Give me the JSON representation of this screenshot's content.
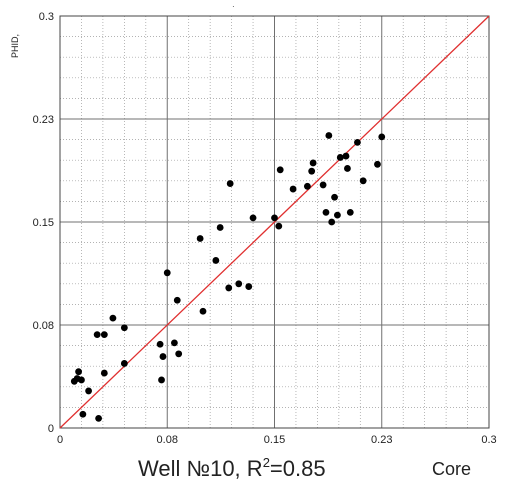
{
  "chart_data": {
    "type": "scatter",
    "title": "Well №10, R²=0.85",
    "caption": {
      "prefix": "Well №10, R",
      "sup": "2",
      "suffix": "=0.85"
    },
    "xlabel": "Core",
    "ylabel": "PHID,",
    "xlim": [
      0,
      0.3
    ],
    "ylim": [
      0,
      0.3
    ],
    "x_ticks": [
      0,
      0.075,
      0.15,
      0.225,
      0.3
    ],
    "x_tick_labels": [
      "0",
      "0.08",
      "0.15",
      "0.23",
      "0.3"
    ],
    "y_ticks": [
      0,
      0.075,
      0.15,
      0.225,
      0.3
    ],
    "y_tick_labels": [
      "0",
      "0.08",
      "0.15",
      "0.23",
      "0.3"
    ],
    "grid": true,
    "reference_line": {
      "from": [
        0,
        0
      ],
      "to": [
        0.3,
        0.3
      ],
      "color": "#e03030"
    },
    "point_color": "#000000",
    "points": [
      [
        0.01,
        0.034
      ],
      [
        0.012,
        0.036
      ],
      [
        0.013,
        0.041
      ],
      [
        0.015,
        0.035
      ],
      [
        0.016,
        0.01
      ],
      [
        0.02,
        0.027
      ],
      [
        0.026,
        0.068
      ],
      [
        0.027,
        0.007
      ],
      [
        0.031,
        0.04
      ],
      [
        0.031,
        0.068
      ],
      [
        0.037,
        0.08
      ],
      [
        0.045,
        0.073
      ],
      [
        0.045,
        0.047
      ],
      [
        0.07,
        0.061
      ],
      [
        0.071,
        0.035
      ],
      [
        0.072,
        0.052
      ],
      [
        0.075,
        0.113
      ],
      [
        0.08,
        0.062
      ],
      [
        0.082,
        0.093
      ],
      [
        0.083,
        0.054
      ],
      [
        0.098,
        0.138
      ],
      [
        0.1,
        0.085
      ],
      [
        0.109,
        0.122
      ],
      [
        0.112,
        0.146
      ],
      [
        0.118,
        0.102
      ],
      [
        0.119,
        0.178
      ],
      [
        0.125,
        0.105
      ],
      [
        0.132,
        0.103
      ],
      [
        0.135,
        0.153
      ],
      [
        0.15,
        0.153
      ],
      [
        0.153,
        0.147
      ],
      [
        0.154,
        0.188
      ],
      [
        0.163,
        0.174
      ],
      [
        0.173,
        0.176
      ],
      [
        0.176,
        0.187
      ],
      [
        0.177,
        0.193
      ],
      [
        0.184,
        0.177
      ],
      [
        0.186,
        0.157
      ],
      [
        0.188,
        0.213
      ],
      [
        0.19,
        0.15
      ],
      [
        0.192,
        0.168
      ],
      [
        0.194,
        0.155
      ],
      [
        0.196,
        0.197
      ],
      [
        0.2,
        0.198
      ],
      [
        0.201,
        0.189
      ],
      [
        0.203,
        0.157
      ],
      [
        0.208,
        0.208
      ],
      [
        0.212,
        0.18
      ],
      [
        0.222,
        0.192
      ],
      [
        0.225,
        0.212
      ]
    ]
  }
}
